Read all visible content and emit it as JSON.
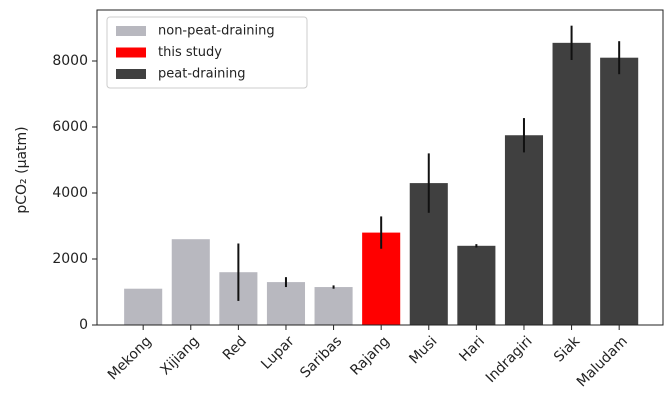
{
  "chart_data": {
    "type": "bar",
    "y_label": "pCO₂ (μatm)",
    "categories": [
      "Mekong",
      "Xijiang",
      "Red",
      "Lupar",
      "Saribas",
      "Rajang",
      "Musi",
      "Hari",
      "Indragiri",
      "Siak",
      "Maludam"
    ],
    "series": [
      {
        "name": "non-peat-draining",
        "color": "#b8b8bf",
        "values": [
          1100,
          2600,
          1600,
          1300,
          1150,
          null,
          null,
          null,
          null,
          null,
          null
        ],
        "errors": [
          null,
          null,
          870,
          150,
          50,
          null,
          null,
          null,
          null,
          null,
          null
        ]
      },
      {
        "name": "this study",
        "color": "#ff0000",
        "values": [
          null,
          null,
          null,
          null,
          null,
          2800,
          null,
          null,
          null,
          null,
          null
        ],
        "errors": [
          null,
          null,
          null,
          null,
          null,
          490,
          null,
          null,
          null,
          null,
          null
        ]
      },
      {
        "name": "peat-draining",
        "color": "#404040",
        "values": [
          null,
          null,
          null,
          null,
          null,
          null,
          4300,
          2400,
          5750,
          8550,
          8100
        ],
        "errors": [
          null,
          null,
          null,
          null,
          null,
          null,
          900,
          50,
          520,
          520,
          500
        ]
      }
    ],
    "ylim": [
      0,
      9545
    ],
    "yticks": [
      0,
      2000,
      4000,
      6000,
      8000
    ],
    "legend": "upper left"
  }
}
